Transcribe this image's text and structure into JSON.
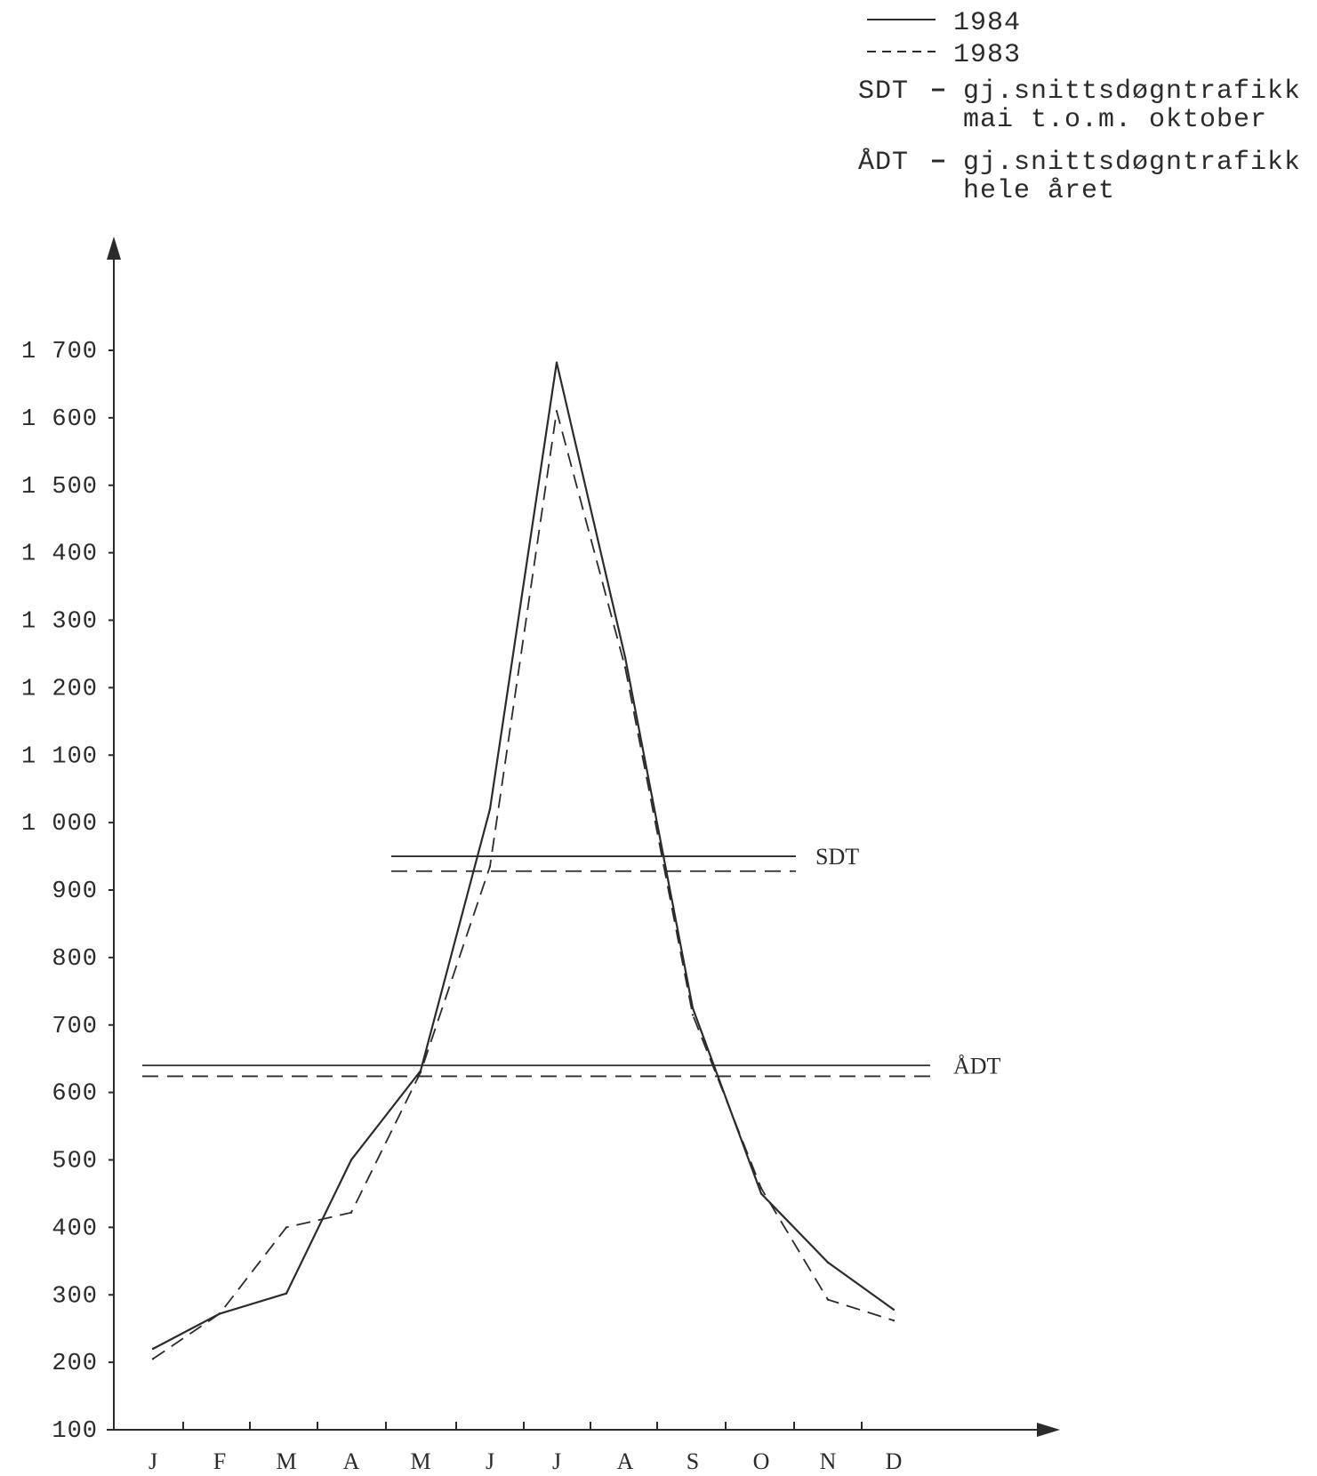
{
  "chart_data": {
    "type": "line",
    "title": "",
    "xlabel": "",
    "ylabel": "",
    "categories": [
      "J",
      "F",
      "M",
      "A",
      "M",
      "J",
      "J",
      "A",
      "S",
      "O",
      "N",
      "D"
    ],
    "series": [
      {
        "name": "1984",
        "style": "solid",
        "values": [
          220,
          272,
          302,
          500,
          632,
          1020,
          1682,
          1245,
          725,
          450,
          348,
          278
        ]
      },
      {
        "name": "1983",
        "style": "dashed",
        "values": [
          205,
          272,
          400,
          422,
          630,
          935,
          1610,
          1230,
          715,
          458,
          293,
          262
        ]
      }
    ],
    "reference_lines": [
      {
        "label": "SDT",
        "series": "1984",
        "style": "solid",
        "value": 950
      },
      {
        "label": "",
        "series": "1983",
        "style": "dashed",
        "value": 928
      },
      {
        "label": "ÅDT",
        "series": "1984",
        "style": "solid",
        "value": 640
      },
      {
        "label": "",
        "series": "1983",
        "style": "dashed",
        "value": 624
      }
    ],
    "y_ticks": [
      {
        "value": 100,
        "label": "100"
      },
      {
        "value": 200,
        "label": "200"
      },
      {
        "value": 300,
        "label": "300"
      },
      {
        "value": 400,
        "label": "400"
      },
      {
        "value": 500,
        "label": "500"
      },
      {
        "value": 600,
        "label": "600"
      },
      {
        "value": 700,
        "label": "700"
      },
      {
        "value": 800,
        "label": "800"
      },
      {
        "value": 900,
        "label": "900"
      },
      {
        "value": 1000,
        "label": "1 000"
      },
      {
        "value": 1100,
        "label": "1 100"
      },
      {
        "value": 1200,
        "label": "1 200"
      },
      {
        "value": 1300,
        "label": "1 300"
      },
      {
        "value": 1400,
        "label": "1 400"
      },
      {
        "value": 1500,
        "label": "1 500"
      },
      {
        "value": 1600,
        "label": "1 600"
      },
      {
        "value": 1700,
        "label": "1 700"
      }
    ],
    "ylim": [
      100,
      1700
    ],
    "legend": {
      "position": "top-right",
      "entries": [
        {
          "symbol": "solid",
          "label": "1984"
        },
        {
          "symbol": "dashed",
          "label": "1983"
        }
      ],
      "notes": [
        {
          "key": "SDT",
          "line1": "gj.snittsdøgntrafikk",
          "line2": "mai t.o.m. oktober"
        },
        {
          "key": "ÅDT",
          "line1": "gj.snittsdøgntrafikk",
          "line2": "hele året"
        }
      ]
    },
    "grid": false,
    "colors": {
      "ink": "#2b2b2b",
      "background": "#ffffff"
    }
  }
}
